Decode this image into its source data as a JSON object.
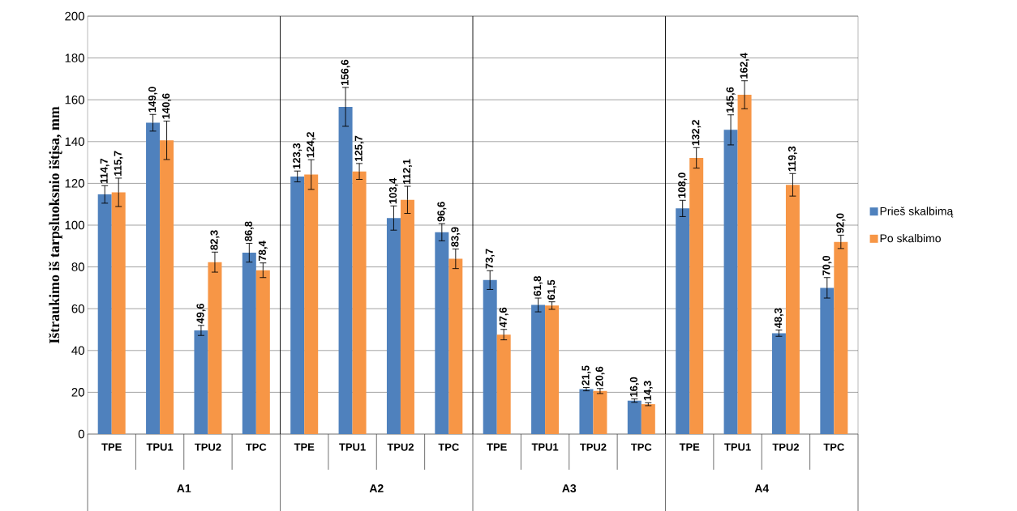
{
  "chart_data": {
    "type": "bar",
    "ylabel": "Ištraukimo iš tarpsluoksnio ištįsa, mm",
    "categories": [
      "TPE",
      "TPU1",
      "TPU2",
      "TPC",
      "TPE",
      "TPU1",
      "TPU2",
      "TPC",
      "TPE",
      "TPU1",
      "TPU2",
      "TPC",
      "TPE",
      "TPU1",
      "TPU2",
      "TPC"
    ],
    "annotations": [
      "A1",
      "A2",
      "A3",
      "A4"
    ],
    "series": [
      {
        "name": "Prieš skalbimą",
        "color": "#4f81bd",
        "values": [
          114.7,
          149.0,
          49.6,
          86.8,
          123.3,
          156.6,
          103.4,
          96.6,
          73.7,
          61.8,
          21.5,
          16.0,
          108.0,
          145.6,
          48.3,
          70.0
        ],
        "errors": [
          4.2,
          4,
          2.4,
          4.5,
          2.6,
          9.3,
          5.8,
          4.1,
          4.5,
          3.3,
          0.8,
          0.8,
          3.9,
          7.2,
          1.5,
          4.9
        ],
        "value_labels": [
          "114,7",
          "149,0",
          "49,6",
          "86,8",
          "123,3",
          "156,6",
          "103,4",
          "96,6",
          "73,7",
          "61,8",
          "21,5",
          "16,0",
          "108,0",
          "145,6",
          "48,3",
          "70,0"
        ]
      },
      {
        "name": "Po skalbimo",
        "color": "#f79646",
        "values": [
          115.7,
          140.6,
          82.3,
          78.4,
          124.2,
          125.7,
          112.1,
          83.9,
          47.6,
          61.5,
          20.6,
          14.3,
          132.2,
          162.4,
          119.3,
          92.0
        ],
        "errors": [
          6.8,
          9.2,
          4.8,
          3.5,
          7.1,
          3.8,
          6.5,
          4.7,
          2.5,
          1.8,
          1.2,
          0.7,
          4.9,
          6.7,
          5.4,
          3.2
        ],
        "value_labels": [
          "115,7",
          "140,6",
          "82,3",
          "78,4",
          "124,2",
          "125,7",
          "112,1",
          "83,9",
          "47,6",
          "61,5",
          "20,6",
          "14,3",
          "132,2",
          "162,4",
          "119,3",
          "92,0"
        ]
      }
    ],
    "ylim": [
      0,
      200
    ],
    "yticks": [
      0,
      20,
      40,
      60,
      80,
      100,
      120,
      140,
      160,
      180,
      200
    ],
    "grid": "y",
    "legend": "right"
  }
}
